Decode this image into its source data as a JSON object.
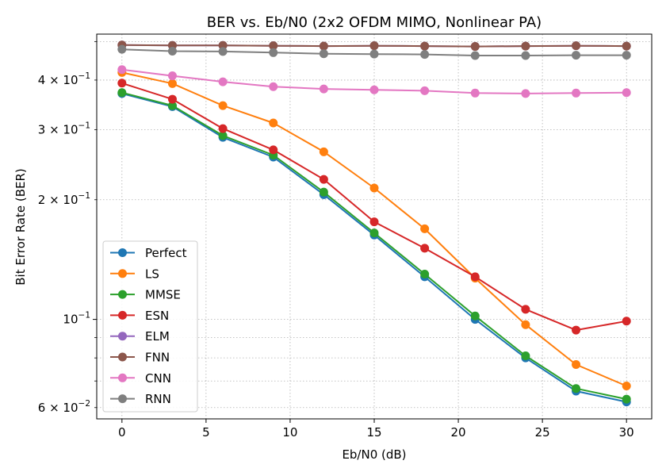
{
  "chart_data": {
    "type": "line",
    "title": "BER vs. Eb/N0 (2x2 OFDM MIMO, Nonlinear PA)",
    "xlabel": "Eb/N0 (dB)",
    "ylabel": "Bit Error Rate (BER)",
    "yscale": "log",
    "xlim": [
      -1.5,
      31.5
    ],
    "ylim": [
      0.0562,
      0.522
    ],
    "grid": true,
    "legend_position": "lower-left",
    "x": [
      0,
      3,
      6,
      9,
      12,
      15,
      18,
      21,
      24,
      27,
      30
    ],
    "x_ticks": [
      0,
      5,
      10,
      15,
      20,
      25,
      30
    ],
    "x_tick_labels": [
      "0",
      "5",
      "10",
      "15",
      "20",
      "25",
      "30"
    ],
    "y_major_ticks": [
      0.1
    ],
    "y_minor_labeled": [
      {
        "value": 0.06,
        "mantissa": "6",
        "base": "10",
        "exp": "−2"
      },
      {
        "value": 0.2,
        "mantissa": "2",
        "base": "10",
        "exp": "−1"
      },
      {
        "value": 0.3,
        "mantissa": "3",
        "base": "10",
        "exp": "−1"
      },
      {
        "value": 0.4,
        "mantissa": "4",
        "base": "10",
        "exp": "−1"
      }
    ],
    "y_major_labels": [
      {
        "value": 0.1,
        "base": "10",
        "exp": "−1"
      }
    ],
    "y_minor_ticks": [
      0.06,
      0.07,
      0.08,
      0.09,
      0.2,
      0.3,
      0.4,
      0.5
    ],
    "series": [
      {
        "name": "Perfect",
        "color": "#1f77b4",
        "values": [
          0.37,
          0.343,
          0.287,
          0.256,
          0.206,
          0.163,
          0.128,
          0.1,
          0.08,
          0.066,
          0.062
        ]
      },
      {
        "name": "LS",
        "color": "#ff7f0e",
        "values": [
          0.418,
          0.392,
          0.345,
          0.312,
          0.264,
          0.214,
          0.169,
          0.127,
          0.097,
          0.077,
          0.068
        ]
      },
      {
        "name": "MMSE",
        "color": "#2ca02c",
        "values": [
          0.372,
          0.345,
          0.29,
          0.259,
          0.209,
          0.165,
          0.13,
          0.102,
          0.081,
          0.067,
          0.063
        ]
      },
      {
        "name": "ESN",
        "color": "#d62728",
        "values": [
          0.393,
          0.358,
          0.302,
          0.267,
          0.225,
          0.176,
          0.151,
          0.128,
          0.106,
          0.094,
          0.099
        ]
      },
      {
        "name": "ELM",
        "color": "#9467bd",
        "values": [
          0.49,
          0.489,
          0.489,
          0.488,
          0.487,
          0.488,
          0.487,
          0.486,
          0.487,
          0.488,
          0.487
        ]
      },
      {
        "name": "FNN",
        "color": "#8c564b",
        "values": [
          0.49,
          0.489,
          0.489,
          0.488,
          0.487,
          0.488,
          0.487,
          0.486,
          0.487,
          0.488,
          0.487
        ]
      },
      {
        "name": "CNN",
        "color": "#e377c2",
        "values": [
          0.425,
          0.41,
          0.396,
          0.385,
          0.38,
          0.378,
          0.376,
          0.371,
          0.37,
          0.371,
          0.372
        ]
      },
      {
        "name": "RNN",
        "color": "#7f7f7f",
        "values": [
          0.478,
          0.473,
          0.472,
          0.469,
          0.466,
          0.465,
          0.464,
          0.461,
          0.461,
          0.462,
          0.462
        ]
      }
    ]
  }
}
